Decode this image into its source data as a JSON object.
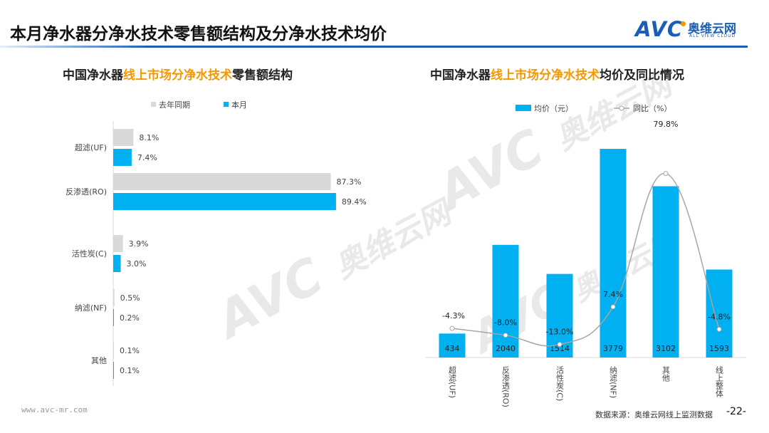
{
  "header": {
    "title": "本月净水器分净水技术零售额结构及分净水技术均价"
  },
  "logo": {
    "brand": "AVC",
    "cn": "奥维云网",
    "en": "ALL VIEW CLOUD"
  },
  "watermark": {
    "brand": "AVC",
    "cn": "奥维云网",
    "en": "ALL VIEW CLOUD"
  },
  "left_chart_title": {
    "prefix": "中国净水器",
    "highlight": "线上市场分净水技术",
    "suffix": "零售额结构"
  },
  "right_chart_title": {
    "prefix": "中国净水器",
    "highlight": "线上市场分净水技术",
    "suffix": "均价及同比情况"
  },
  "colors": {
    "blue": "#00b0f0",
    "gray": "#d9d9d9",
    "line": "#a6a6a6",
    "accent": "#f39800",
    "brand": "#1a5fb4"
  },
  "chart_data": [
    {
      "type": "bar",
      "orientation": "horizontal",
      "categories": [
        "超滤(UF)",
        "反渗透(RO)",
        "活性炭(C)",
        "纳滤(NF)",
        "其他"
      ],
      "series": [
        {
          "name": "去年同期",
          "values": [
            8.1,
            87.3,
            3.9,
            0.5,
            0.1
          ],
          "labels": [
            "8.1%",
            "87.3%",
            "3.9%",
            "0.5%",
            "0.1%"
          ]
        },
        {
          "name": "本月",
          "values": [
            7.4,
            89.4,
            3.0,
            0.2,
            0.1
          ],
          "labels": [
            "7.4%",
            "89.4%",
            "3.0%",
            "0.2%",
            "0.1%"
          ]
        }
      ],
      "legend": "top"
    },
    {
      "type": "bar+line",
      "categories": [
        "超滤(UF)",
        "反渗透(RO)",
        "活性炭(C)",
        "纳滤(NF)",
        "其他",
        "线上整体"
      ],
      "series": [
        {
          "name": "均价（元）",
          "type": "bar",
          "values": [
            434,
            2040,
            1514,
            3779,
            3102,
            1593
          ],
          "labels": [
            "434",
            "2040",
            "1514",
            "3779",
            "3102",
            "1593"
          ]
        },
        {
          "name": "同比（%）",
          "type": "line",
          "smooth": true,
          "values": [
            -4.3,
            -8.0,
            -13.0,
            7.4,
            79.8,
            -4.8
          ],
          "labels": [
            "-4.3%",
            "-8.0%",
            "-13.0%",
            "7.4%",
            "79.8%",
            "-4.8%"
          ]
        }
      ],
      "legend": "top"
    }
  ],
  "footer": {
    "url": "www.avc-mr.com",
    "source": "数据来源：奥维云网线上监测数据",
    "page": "-22-"
  }
}
